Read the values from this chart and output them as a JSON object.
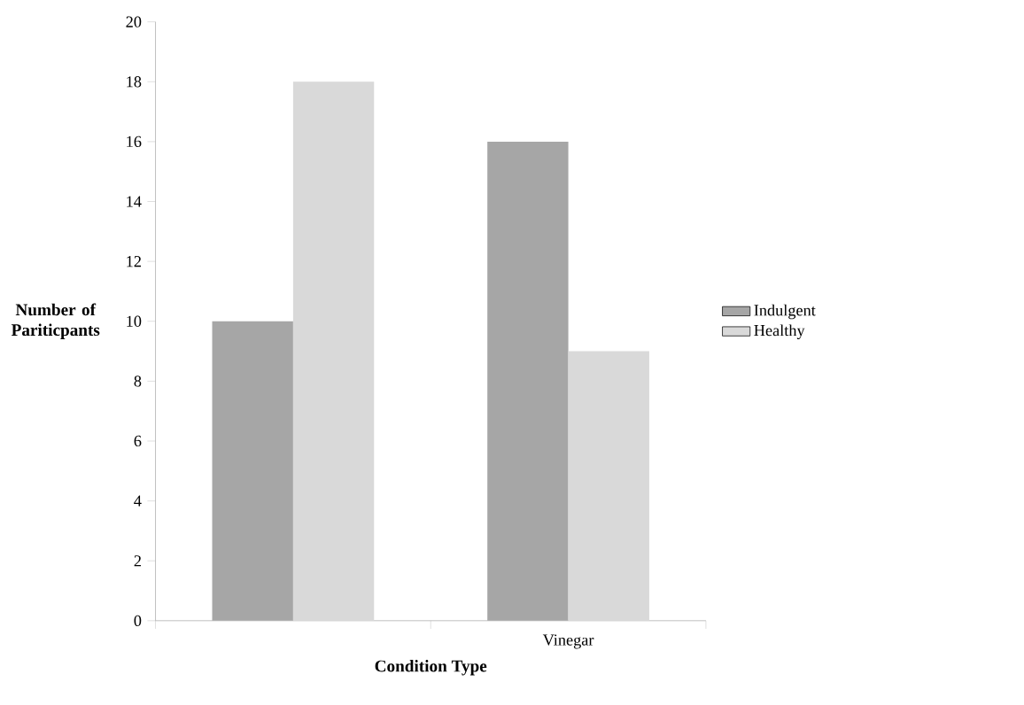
{
  "chart_data": {
    "type": "bar",
    "xlabel": "Condition Type",
    "ylabel": "Number of Pariticpants",
    "categories": [
      null,
      "Vinegar"
    ],
    "series": [
      {
        "name": "Indulgent",
        "color": "#a6a6a6",
        "values": [
          10,
          16
        ]
      },
      {
        "name": "Healthy",
        "color": "#d9d9d9",
        "values": [
          18,
          9
        ]
      }
    ],
    "ylim": [
      0,
      20
    ],
    "yticks": [
      0,
      2,
      4,
      6,
      8,
      10,
      12,
      14,
      16,
      18,
      20
    ],
    "grid": false,
    "legend": "right"
  }
}
